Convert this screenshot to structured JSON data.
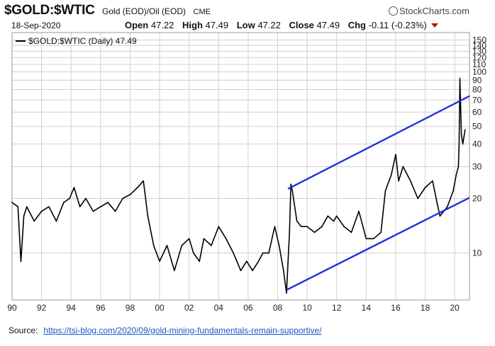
{
  "header": {
    "symbol": "$GOLD:$WTIC",
    "description": "Gold (EOD)/Oil (EOD)",
    "exchange": "CME",
    "brand": "StockCharts.com",
    "date": "18-Sep-2020",
    "open_label": "Open",
    "open_value": "47.22",
    "high_label": "High",
    "high_value": "47.49",
    "low_label": "Low",
    "low_value": "47.22",
    "close_label": "Close",
    "close_value": "47.49",
    "chg_label": "Chg",
    "chg_value": "-0.11 (-0.23%)"
  },
  "legend": {
    "text": "$GOLD:$WTIC (Daily) 47.49"
  },
  "source": {
    "label": "Source:",
    "url": "https://tsi-blog.com/2020/09/gold-mining-fundamentals-remain-supportive/"
  },
  "colors": {
    "price": "#000000",
    "channel": "#1f2fe0",
    "grid": "#d0d0d0",
    "down_arrow": "#cc0000"
  },
  "chart_data": {
    "type": "line",
    "title": "$GOLD:$WTIC",
    "xlabel": "",
    "ylabel": "",
    "y_scale": "log",
    "ylim": [
      5.5,
      165
    ],
    "xlim": [
      1990.0,
      2021.0
    ],
    "x_tick_labels": [
      "90",
      "92",
      "94",
      "96",
      "98",
      "00",
      "02",
      "04",
      "06",
      "08",
      "10",
      "12",
      "14",
      "16",
      "18",
      "20"
    ],
    "y_tick_labels": [
      "150",
      "140",
      "130",
      "120",
      "110",
      "100",
      "90",
      "80",
      "70",
      "60",
      "50",
      "40",
      "30",
      "20",
      "10"
    ],
    "y_tick_values": [
      150,
      140,
      130,
      120,
      110,
      100,
      90,
      80,
      70,
      60,
      50,
      40,
      30,
      20,
      10
    ],
    "series": [
      {
        "name": "$GOLD:$WTIC (Daily) 47.49",
        "x": [
          1990.0,
          1990.4,
          1990.6,
          1990.8,
          1991.0,
          1991.5,
          1992.0,
          1992.5,
          1993.0,
          1993.5,
          1993.9,
          1994.2,
          1994.6,
          1995.0,
          1995.5,
          1996.0,
          1996.5,
          1997.0,
          1997.5,
          1998.0,
          1998.5,
          1998.9,
          1999.2,
          1999.6,
          2000.0,
          2000.5,
          2001.0,
          2001.5,
          2002.0,
          2002.3,
          2002.7,
          2003.0,
          2003.5,
          2004.0,
          2004.5,
          2005.0,
          2005.5,
          2005.9,
          2006.3,
          2006.7,
          2007.0,
          2007.4,
          2007.8,
          2008.1,
          2008.4,
          2008.6,
          2008.8,
          2008.9,
          2009.0,
          2009.3,
          2009.6,
          2010.0,
          2010.5,
          2011.0,
          2011.4,
          2011.8,
          2012.0,
          2012.5,
          2013.0,
          2013.5,
          2014.0,
          2014.5,
          2015.0,
          2015.3,
          2015.7,
          2016.0,
          2016.2,
          2016.5,
          2017.0,
          2017.5,
          2018.0,
          2018.5,
          2018.8,
          2019.0,
          2019.5,
          2019.9,
          2020.1,
          2020.25,
          2020.3,
          2020.35,
          2020.45,
          2020.55,
          2020.7
        ],
        "y": [
          19,
          18,
          9,
          16,
          18,
          15,
          17,
          18,
          15,
          19,
          20,
          23,
          18,
          20,
          17,
          18,
          19,
          17,
          20,
          21,
          23,
          25,
          16,
          11,
          9,
          11,
          8,
          11,
          12,
          10,
          9,
          12,
          11,
          14,
          12,
          10,
          8,
          9,
          8,
          9,
          10,
          10,
          14,
          11,
          8,
          6,
          13,
          24,
          22,
          15,
          14,
          14,
          13,
          14,
          16,
          15,
          16,
          14,
          13,
          17,
          12,
          12,
          13,
          22,
          27,
          35,
          25,
          30,
          25,
          20,
          23,
          25,
          19,
          16,
          18,
          22,
          27,
          30,
          40,
          92,
          45,
          40,
          48
        ]
      }
    ],
    "channel_lines": [
      {
        "x": [
          2008.7,
          2021.0
        ],
        "y": [
          22.6,
          73.6
        ]
      },
      {
        "x": [
          2008.6,
          2021.0
        ],
        "y": [
          6.25,
          20.2
        ]
      }
    ]
  }
}
